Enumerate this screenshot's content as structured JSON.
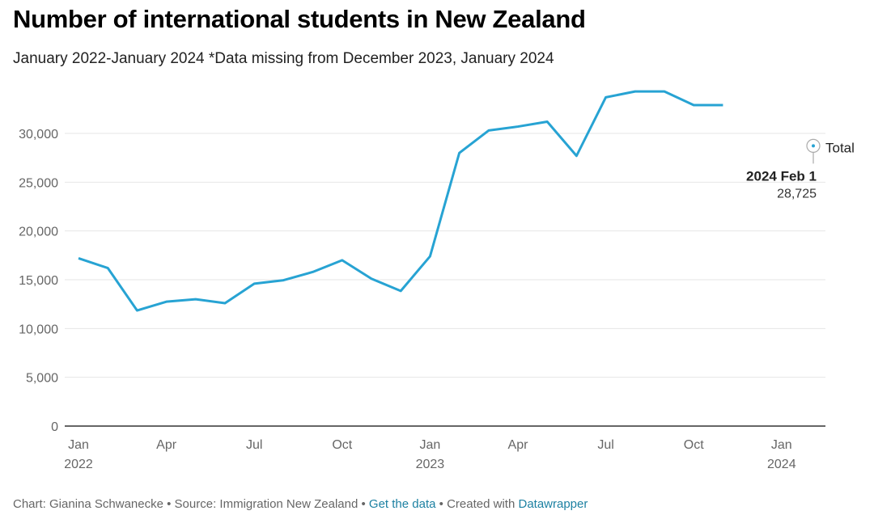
{
  "title": "Number of international students in New Zealand",
  "subtitle": "January 2022-January 2024 *Data missing from December 2023, January 2024",
  "footer": {
    "chart_by": "Chart: Gianina Schwanecke",
    "source": "Source: Immigration New Zealand",
    "get_data": "Get the data",
    "created_with": "Created with",
    "tool": "Datawrapper",
    "sep": "•"
  },
  "colors": {
    "line": "#27a3d3",
    "grid": "#e6e6e6",
    "link": "#1d81a2"
  },
  "chart_data": {
    "type": "line",
    "title": "Number of international students in New Zealand",
    "xlabel": "",
    "ylabel": "",
    "ylim": [
      0,
      35000
    ],
    "yticks": [
      0,
      5000,
      10000,
      15000,
      20000,
      25000,
      30000
    ],
    "ytick_labels": [
      "0",
      "5,000",
      "10,000",
      "15,000",
      "20,000",
      "25,000",
      "30,000"
    ],
    "xticks": [
      {
        "month": 0,
        "label": "Jan",
        "year": "2022"
      },
      {
        "month": 3,
        "label": "Apr",
        "year": ""
      },
      {
        "month": 6,
        "label": "Jul",
        "year": ""
      },
      {
        "month": 9,
        "label": "Oct",
        "year": ""
      },
      {
        "month": 12,
        "label": "Jan",
        "year": "2023"
      },
      {
        "month": 15,
        "label": "Apr",
        "year": ""
      },
      {
        "month": 18,
        "label": "Jul",
        "year": ""
      },
      {
        "month": 21,
        "label": "Oct",
        "year": ""
      },
      {
        "month": 24,
        "label": "Jan",
        "year": "2024"
      }
    ],
    "xlim_months": [
      0,
      25.5
    ],
    "grid": true,
    "series": [
      {
        "name": "Total",
        "months": [
          0,
          1,
          2,
          3,
          4,
          5,
          6,
          7,
          8,
          9,
          10,
          11,
          12,
          13,
          14,
          15,
          16,
          17,
          18,
          19,
          20,
          21,
          22
        ],
        "values": [
          17200,
          16200,
          11850,
          12750,
          13000,
          12600,
          14600,
          14950,
          15800,
          17000,
          15100,
          13850,
          17400,
          28000,
          30300,
          30700,
          31200,
          27700,
          33700,
          34300,
          34300,
          32900,
          32900
        ]
      }
    ],
    "annotation": {
      "month": 25,
      "value": 28725,
      "label": "Total",
      "date": "2024 Feb 1",
      "value_label": "28,725"
    }
  }
}
